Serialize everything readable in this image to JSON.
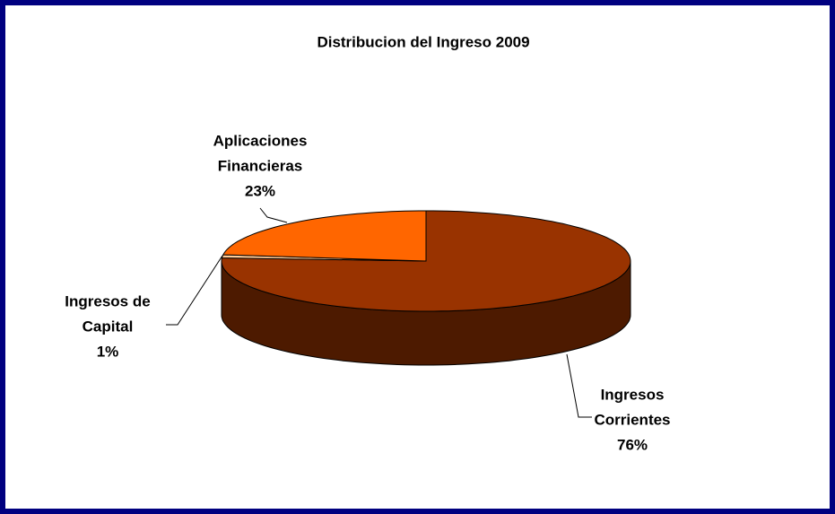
{
  "chart_data": {
    "type": "pie",
    "title": "Distribucion del Ingreso 2009",
    "categories": [
      [
        "Ingresos",
        "Corrientes"
      ],
      [
        "Ingresos de",
        "Capital"
      ],
      [
        "Aplicaciones",
        "Financieras"
      ]
    ],
    "values": [
      76,
      1,
      23
    ],
    "value_labels": [
      "76%",
      "1%",
      "23%"
    ],
    "colors": [
      "#993300",
      "#ffcc99",
      "#ff6600"
    ],
    "side_colors": [
      "#4d1a00",
      "#b38f6b",
      "#b34700"
    ]
  }
}
